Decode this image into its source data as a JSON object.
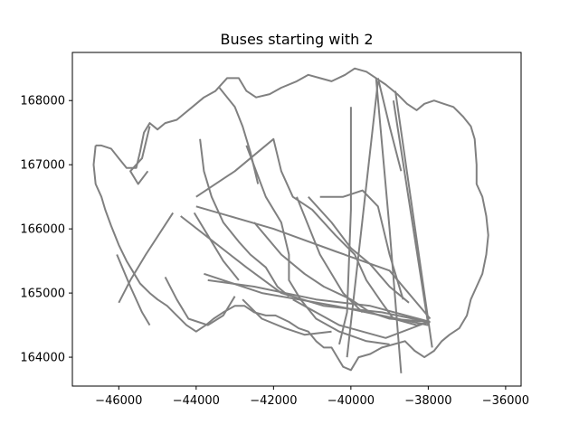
{
  "chart_data": {
    "type": "line",
    "title": "Buses starting with 2",
    "xlabel": "",
    "ylabel": "",
    "xlim": [
      -47200,
      -35600
    ],
    "ylim": [
      163550,
      168750
    ],
    "xticks": [
      -46000,
      -44000,
      -42000,
      -40000,
      -38000,
      -36000
    ],
    "xtick_labels": [
      "−46000",
      "−44000",
      "−42000",
      "−40000",
      "−38000",
      "−36000"
    ],
    "yticks": [
      164000,
      165000,
      166000,
      167000,
      168000
    ],
    "ytick_labels": [
      "164000",
      "165000",
      "166000",
      "167000",
      "168000"
    ],
    "grid": false,
    "line_color": "#808080",
    "series": [
      {
        "values": [
          [
            -46600,
            167300
          ],
          [
            -46450,
            167300
          ],
          [
            -46200,
            167250
          ],
          [
            -46000,
            167100
          ],
          [
            -45800,
            166950
          ],
          [
            -45550,
            166950
          ],
          [
            -45450,
            167200
          ],
          [
            -45350,
            167500
          ],
          [
            -45200,
            167650
          ],
          [
            -45000,
            167550
          ],
          [
            -44800,
            167650
          ],
          [
            -44500,
            167700
          ],
          [
            -44100,
            167900
          ],
          [
            -43800,
            168050
          ],
          [
            -43500,
            168150
          ],
          [
            -43200,
            168350
          ],
          [
            -42900,
            168350
          ],
          [
            -42700,
            168150
          ],
          [
            -42450,
            168050
          ],
          [
            -42100,
            168100
          ],
          [
            -41800,
            168200
          ],
          [
            -41400,
            168300
          ],
          [
            -41100,
            168400
          ],
          [
            -40800,
            168350
          ],
          [
            -40500,
            168300
          ],
          [
            -40150,
            168400
          ],
          [
            -39900,
            168500
          ],
          [
            -39600,
            168450
          ],
          [
            -39350,
            168350
          ],
          [
            -39100,
            168250
          ],
          [
            -38800,
            168100
          ],
          [
            -38550,
            167950
          ],
          [
            -38300,
            167850
          ],
          [
            -38100,
            167950
          ],
          [
            -37850,
            168000
          ],
          [
            -37600,
            167950
          ],
          [
            -37350,
            167900
          ],
          [
            -37100,
            167750
          ],
          [
            -36900,
            167600
          ],
          [
            -36800,
            167400
          ],
          [
            -36750,
            167000
          ],
          [
            -36750,
            166700
          ],
          [
            -36600,
            166500
          ],
          [
            -36500,
            166200
          ],
          [
            -36450,
            165900
          ],
          [
            -36500,
            165600
          ],
          [
            -36600,
            165300
          ],
          [
            -36750,
            165100
          ],
          [
            -36900,
            164900
          ],
          [
            -37000,
            164650
          ],
          [
            -37200,
            164450
          ],
          [
            -37450,
            164350
          ],
          [
            -37650,
            164250
          ],
          [
            -37850,
            164100
          ],
          [
            -38100,
            164000
          ],
          [
            -38350,
            164100
          ],
          [
            -38600,
            164250
          ],
          [
            -38900,
            164200
          ],
          [
            -39200,
            164150
          ],
          [
            -39500,
            164050
          ],
          [
            -39800,
            164000
          ],
          [
            -40000,
            163800
          ],
          [
            -40200,
            163850
          ],
          [
            -40350,
            164000
          ],
          [
            -40500,
            164150
          ],
          [
            -40700,
            164150
          ],
          [
            -40900,
            164250
          ],
          [
            -41100,
            164400
          ],
          [
            -41350,
            164450
          ],
          [
            -41600,
            164550
          ],
          [
            -41950,
            164650
          ],
          [
            -42200,
            164650
          ],
          [
            -42500,
            164700
          ],
          [
            -42750,
            164800
          ],
          [
            -43000,
            164800
          ],
          [
            -43300,
            164700
          ],
          [
            -43550,
            164600
          ],
          [
            -43750,
            164500
          ],
          [
            -44000,
            164400
          ],
          [
            -44250,
            164500
          ],
          [
            -44500,
            164650
          ],
          [
            -44750,
            164800
          ],
          [
            -45000,
            164900
          ],
          [
            -45200,
            165000
          ],
          [
            -45450,
            165150
          ],
          [
            -45600,
            165300
          ],
          [
            -45800,
            165500
          ],
          [
            -46000,
            165750
          ],
          [
            -46200,
            166050
          ],
          [
            -46350,
            166300
          ],
          [
            -46450,
            166500
          ],
          [
            -46600,
            166700
          ],
          [
            -46650,
            167000
          ],
          [
            -46600,
            167300
          ]
        ]
      },
      {
        "values": [
          [
            -44400,
            166200
          ],
          [
            -42700,
            165400
          ],
          [
            -41800,
            165000
          ],
          [
            -40700,
            164800
          ],
          [
            -39200,
            164700
          ],
          [
            -38000,
            164550
          ]
        ]
      },
      {
        "values": [
          [
            -44000,
            166350
          ],
          [
            -42000,
            166000
          ],
          [
            -40400,
            165650
          ],
          [
            -39000,
            165350
          ],
          [
            -37950,
            164600
          ]
        ]
      },
      {
        "values": [
          [
            -43800,
            165300
          ],
          [
            -42300,
            165000
          ],
          [
            -40400,
            164800
          ],
          [
            -38000,
            164500
          ]
        ]
      },
      {
        "values": [
          [
            -43700,
            165200
          ],
          [
            -42500,
            165100
          ],
          [
            -40900,
            164900
          ],
          [
            -39500,
            164800
          ],
          [
            -37950,
            164550
          ]
        ]
      },
      {
        "values": [
          [
            -41500,
            164900
          ],
          [
            -40300,
            164500
          ],
          [
            -39100,
            164300
          ],
          [
            -38000,
            164550
          ]
        ]
      },
      {
        "values": [
          [
            -44000,
            166500
          ],
          [
            -43000,
            166900
          ],
          [
            -42000,
            167400
          ],
          [
            -41800,
            166900
          ],
          [
            -41500,
            166500
          ],
          [
            -41000,
            166300
          ],
          [
            -40400,
            165900
          ],
          [
            -39900,
            165600
          ],
          [
            -39600,
            165200
          ],
          [
            -39200,
            164850
          ],
          [
            -38900,
            164600
          ],
          [
            -38300,
            164500
          ],
          [
            -37950,
            164550
          ]
        ]
      },
      {
        "values": [
          [
            -39350,
            168350
          ],
          [
            -39000,
            166000
          ],
          [
            -38700,
            163750
          ]
        ]
      },
      {
        "values": [
          [
            -39300,
            168300
          ],
          [
            -40100,
            164000
          ]
        ]
      },
      {
        "values": [
          [
            -38900,
            168000
          ],
          [
            -38000,
            164500
          ]
        ]
      },
      {
        "values": [
          [
            -38850,
            168150
          ],
          [
            -37900,
            164150
          ]
        ]
      },
      {
        "values": [
          [
            -40000,
            167900
          ],
          [
            -40000,
            166300
          ],
          [
            -40100,
            164700
          ],
          [
            -40300,
            164200
          ]
        ]
      },
      {
        "values": [
          [
            -41400,
            166500
          ],
          [
            -40800,
            165600
          ],
          [
            -40200,
            165000
          ],
          [
            -39700,
            164700
          ]
        ]
      },
      {
        "values": [
          [
            -42500,
            166100
          ],
          [
            -41800,
            165600
          ],
          [
            -41200,
            165300
          ],
          [
            -40700,
            165100
          ],
          [
            -40000,
            164900
          ],
          [
            -39500,
            164700
          ],
          [
            -39000,
            164600
          ],
          [
            -38000,
            164550
          ]
        ]
      },
      {
        "values": [
          [
            -44600,
            166250
          ],
          [
            -45300,
            165600
          ],
          [
            -45700,
            165200
          ],
          [
            -46000,
            164850
          ]
        ]
      },
      {
        "values": [
          [
            -42800,
            164900
          ],
          [
            -42300,
            164600
          ],
          [
            -41700,
            164450
          ],
          [
            -41200,
            164350
          ],
          [
            -40500,
            164400
          ]
        ]
      },
      {
        "values": [
          [
            -40800,
            166500
          ],
          [
            -40200,
            166500
          ],
          [
            -39700,
            166600
          ],
          [
            -39300,
            166350
          ],
          [
            -39000,
            165600
          ],
          [
            -38650,
            164900
          ]
        ]
      },
      {
        "values": [
          [
            -41100,
            166500
          ],
          [
            -40500,
            166100
          ],
          [
            -40000,
            165700
          ],
          [
            -39500,
            165450
          ],
          [
            -39000,
            165100
          ],
          [
            -38500,
            164850
          ]
        ]
      },
      {
        "values": [
          [
            -44050,
            166250
          ],
          [
            -43700,
            165900
          ],
          [
            -43300,
            165500
          ],
          [
            -42900,
            165200
          ]
        ]
      },
      {
        "values": [
          [
            -46050,
            165600
          ],
          [
            -45700,
            165100
          ],
          [
            -45400,
            164700
          ],
          [
            -45200,
            164500
          ]
        ]
      },
      {
        "values": [
          [
            -39300,
            168350
          ],
          [
            -39000,
            167600
          ],
          [
            -38700,
            166900
          ]
        ]
      },
      {
        "values": [
          [
            -42700,
            167300
          ],
          [
            -42200,
            166500
          ],
          [
            -41800,
            166100
          ],
          [
            -41600,
            165600
          ],
          [
            -41600,
            165200
          ],
          [
            -41300,
            164900
          ],
          [
            -40900,
            164600
          ],
          [
            -40300,
            164400
          ],
          [
            -39600,
            164250
          ],
          [
            -39000,
            164200
          ]
        ]
      },
      {
        "values": [
          [
            -43400,
            168200
          ],
          [
            -43000,
            167900
          ],
          [
            -42800,
            167600
          ],
          [
            -42600,
            167200
          ],
          [
            -42400,
            166700
          ]
        ]
      },
      {
        "values": [
          [
            -45200,
            167600
          ],
          [
            -45400,
            167100
          ],
          [
            -45700,
            166900
          ],
          [
            -45500,
            166700
          ],
          [
            -45250,
            166900
          ]
        ]
      },
      {
        "values": [
          [
            -43900,
            167400
          ],
          [
            -43800,
            166900
          ],
          [
            -43600,
            166500
          ],
          [
            -43300,
            166100
          ],
          [
            -42900,
            165800
          ],
          [
            -42600,
            165600
          ],
          [
            -42200,
            165400
          ],
          [
            -41900,
            165100
          ],
          [
            -41600,
            164950
          ]
        ]
      },
      {
        "values": [
          [
            -44800,
            165250
          ],
          [
            -44500,
            164900
          ],
          [
            -44200,
            164600
          ],
          [
            -43700,
            164500
          ],
          [
            -43300,
            164650
          ],
          [
            -43000,
            164950
          ]
        ]
      }
    ]
  }
}
